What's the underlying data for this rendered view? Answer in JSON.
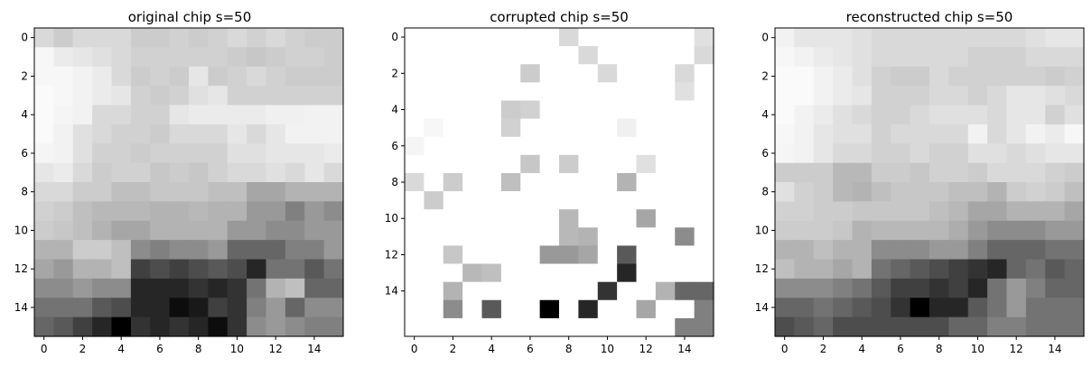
{
  "chart_data": [
    {
      "type": "heatmap",
      "title": "original chip s=50",
      "colormap": "gray_r",
      "xticks": [
        0,
        2,
        4,
        6,
        8,
        10,
        12,
        14
      ],
      "yticks": [
        0,
        2,
        4,
        6,
        8,
        10,
        12,
        14
      ],
      "values": [
        [
          0.15,
          0.2,
          0.15,
          0.15,
          0.15,
          0.2,
          0.2,
          0.18,
          0.2,
          0.18,
          0.15,
          0.18,
          0.15,
          0.18,
          0.2,
          0.2
        ],
        [
          0.03,
          0.08,
          0.1,
          0.12,
          0.15,
          0.18,
          0.18,
          0.18,
          0.18,
          0.18,
          0.2,
          0.22,
          0.2,
          0.18,
          0.18,
          0.2
        ],
        [
          0.03,
          0.03,
          0.05,
          0.08,
          0.15,
          0.2,
          0.18,
          0.2,
          0.1,
          0.2,
          0.18,
          0.15,
          0.18,
          0.2,
          0.2,
          0.2
        ],
        [
          0.02,
          0.03,
          0.05,
          0.08,
          0.1,
          0.18,
          0.2,
          0.18,
          0.12,
          0.1,
          0.18,
          0.18,
          0.18,
          0.18,
          0.18,
          0.18
        ],
        [
          0.02,
          0.04,
          0.05,
          0.15,
          0.15,
          0.18,
          0.18,
          0.1,
          0.08,
          0.08,
          0.08,
          0.08,
          0.06,
          0.06,
          0.05,
          0.05
        ],
        [
          0.02,
          0.05,
          0.12,
          0.15,
          0.18,
          0.18,
          0.2,
          0.15,
          0.15,
          0.15,
          0.1,
          0.15,
          0.1,
          0.05,
          0.05,
          0.05
        ],
        [
          0.04,
          0.05,
          0.12,
          0.18,
          0.18,
          0.2,
          0.18,
          0.18,
          0.18,
          0.18,
          0.12,
          0.12,
          0.1,
          0.1,
          0.1,
          0.08
        ],
        [
          0.1,
          0.08,
          0.15,
          0.2,
          0.18,
          0.18,
          0.22,
          0.2,
          0.22,
          0.18,
          0.15,
          0.15,
          0.12,
          0.15,
          0.1,
          0.15
        ],
        [
          0.15,
          0.15,
          0.2,
          0.2,
          0.25,
          0.25,
          0.22,
          0.22,
          0.22,
          0.25,
          0.25,
          0.35,
          0.35,
          0.3,
          0.3,
          0.3
        ],
        [
          0.18,
          0.2,
          0.25,
          0.28,
          0.28,
          0.28,
          0.3,
          0.3,
          0.28,
          0.3,
          0.3,
          0.4,
          0.4,
          0.5,
          0.4,
          0.45
        ],
        [
          0.2,
          0.22,
          0.25,
          0.3,
          0.35,
          0.35,
          0.3,
          0.3,
          0.3,
          0.3,
          0.4,
          0.4,
          0.45,
          0.45,
          0.4,
          0.4
        ],
        [
          0.3,
          0.3,
          0.2,
          0.2,
          0.25,
          0.45,
          0.5,
          0.45,
          0.45,
          0.4,
          0.6,
          0.6,
          0.6,
          0.5,
          0.5,
          0.4
        ],
        [
          0.35,
          0.4,
          0.3,
          0.3,
          0.25,
          0.75,
          0.7,
          0.75,
          0.7,
          0.65,
          0.7,
          0.85,
          0.55,
          0.55,
          0.65,
          0.55
        ],
        [
          0.45,
          0.45,
          0.4,
          0.45,
          0.45,
          0.85,
          0.85,
          0.85,
          0.8,
          0.85,
          0.8,
          0.55,
          0.3,
          0.25,
          0.6,
          0.6
        ],
        [
          0.55,
          0.55,
          0.55,
          0.65,
          0.7,
          0.85,
          0.85,
          0.95,
          0.9,
          0.75,
          0.8,
          0.5,
          0.4,
          0.6,
          0.45,
          0.45
        ],
        [
          0.6,
          0.65,
          0.75,
          0.85,
          1.0,
          0.8,
          0.85,
          0.8,
          0.85,
          0.95,
          0.8,
          0.45,
          0.4,
          0.45,
          0.5,
          0.5
        ]
      ]
    },
    {
      "type": "heatmap",
      "title": "corrupted chip s=50",
      "colormap": "gray_r",
      "xticks": [
        0,
        2,
        4,
        6,
        8,
        10,
        12,
        14
      ],
      "yticks": [
        0,
        2,
        4,
        6,
        8,
        10,
        12,
        14
      ],
      "values": [
        [
          0,
          0,
          0,
          0,
          0,
          0,
          0,
          0,
          0.15,
          0,
          0,
          0,
          0,
          0,
          0,
          0.12
        ],
        [
          0,
          0,
          0,
          0,
          0,
          0,
          0,
          0,
          0,
          0.15,
          0,
          0,
          0,
          0,
          0,
          0.15
        ],
        [
          0,
          0,
          0,
          0,
          0,
          0,
          0.2,
          0,
          0,
          0,
          0.15,
          0,
          0,
          0,
          0.15,
          0
        ],
        [
          0,
          0,
          0,
          0,
          0,
          0,
          0,
          0,
          0,
          0,
          0,
          0,
          0,
          0,
          0.12,
          0
        ],
        [
          0,
          0,
          0,
          0,
          0,
          0.2,
          0.18,
          0,
          0,
          0,
          0,
          0,
          0,
          0,
          0,
          0
        ],
        [
          0,
          0.03,
          0,
          0,
          0,
          0.18,
          0,
          0,
          0,
          0,
          0,
          0.06,
          0,
          0,
          0,
          0
        ],
        [
          0.04,
          0,
          0,
          0,
          0,
          0,
          0,
          0,
          0,
          0,
          0,
          0,
          0,
          0,
          0,
          0
        ],
        [
          0,
          0,
          0,
          0,
          0,
          0,
          0.22,
          0,
          0.2,
          0,
          0,
          0,
          0.12,
          0,
          0,
          0
        ],
        [
          0.15,
          0,
          0.2,
          0,
          0,
          0.25,
          0,
          0,
          0,
          0,
          0,
          0.3,
          0,
          0,
          0,
          0
        ],
        [
          0,
          0.2,
          0,
          0,
          0,
          0,
          0,
          0,
          0,
          0,
          0,
          0,
          0,
          0,
          0,
          0
        ],
        [
          0,
          0,
          0,
          0,
          0,
          0,
          0,
          0,
          0.28,
          0,
          0,
          0,
          0.35,
          0,
          0,
          0
        ],
        [
          0,
          0,
          0,
          0,
          0,
          0,
          0,
          0,
          0.28,
          0.3,
          0,
          0,
          0,
          0,
          0.45,
          0
        ],
        [
          0,
          0,
          0.22,
          0,
          0,
          0,
          0,
          0.4,
          0.4,
          0.35,
          0,
          0.65,
          0,
          0,
          0,
          0
        ],
        [
          0,
          0,
          0,
          0.28,
          0.25,
          0,
          0,
          0,
          0,
          0,
          0,
          0.85,
          0,
          0,
          0,
          0
        ],
        [
          0,
          0,
          0.3,
          0,
          0,
          0,
          0,
          0,
          0,
          0,
          0.8,
          0,
          0,
          0.3,
          0.6,
          0.6
        ],
        [
          0,
          0,
          0.45,
          0,
          0.65,
          0,
          0,
          1.0,
          0,
          0.85,
          0,
          0,
          0.35,
          0,
          0,
          0.5
        ],
        [
          0,
          0,
          0,
          0,
          0,
          0,
          0,
          0,
          0,
          0,
          0,
          0,
          0,
          0,
          0.5,
          0.5
        ]
      ]
    },
    {
      "type": "heatmap",
      "title": "reconstructed chip s=50",
      "colormap": "gray_r",
      "xticks": [
        0,
        2,
        4,
        6,
        8,
        10,
        12,
        14
      ],
      "yticks": [
        0,
        2,
        4,
        6,
        8,
        10,
        12,
        14
      ],
      "values": [
        [
          0.05,
          0.1,
          0.1,
          0.1,
          0.12,
          0.15,
          0.15,
          0.15,
          0.15,
          0.15,
          0.15,
          0.15,
          0.15,
          0.12,
          0.1,
          0.1
        ],
        [
          0.03,
          0.05,
          0.08,
          0.1,
          0.12,
          0.15,
          0.15,
          0.15,
          0.15,
          0.15,
          0.18,
          0.18,
          0.18,
          0.15,
          0.15,
          0.15
        ],
        [
          0.02,
          0.02,
          0.05,
          0.08,
          0.12,
          0.18,
          0.2,
          0.2,
          0.15,
          0.18,
          0.18,
          0.18,
          0.18,
          0.18,
          0.2,
          0.18
        ],
        [
          0.02,
          0.02,
          0.05,
          0.08,
          0.1,
          0.18,
          0.18,
          0.18,
          0.15,
          0.15,
          0.18,
          0.15,
          0.1,
          0.1,
          0.12,
          0.15
        ],
        [
          0.02,
          0.05,
          0.08,
          0.12,
          0.15,
          0.18,
          0.18,
          0.15,
          0.12,
          0.12,
          0.12,
          0.15,
          0.1,
          0.1,
          0.18,
          0.12
        ],
        [
          0.03,
          0.05,
          0.1,
          0.12,
          0.12,
          0.18,
          0.15,
          0.15,
          0.15,
          0.15,
          0.05,
          0.15,
          0.1,
          0.05,
          0.08,
          0.03
        ],
        [
          0.04,
          0.05,
          0.1,
          0.15,
          0.15,
          0.18,
          0.18,
          0.15,
          0.18,
          0.18,
          0.12,
          0.12,
          0.15,
          0.12,
          0.1,
          0.1
        ],
        [
          0.2,
          0.2,
          0.2,
          0.28,
          0.28,
          0.2,
          0.2,
          0.22,
          0.18,
          0.18,
          0.2,
          0.15,
          0.15,
          0.15,
          0.18,
          0.2
        ],
        [
          0.12,
          0.18,
          0.2,
          0.28,
          0.3,
          0.25,
          0.22,
          0.22,
          0.22,
          0.25,
          0.25,
          0.3,
          0.2,
          0.18,
          0.2,
          0.25
        ],
        [
          0.18,
          0.18,
          0.2,
          0.2,
          0.22,
          0.22,
          0.22,
          0.22,
          0.25,
          0.28,
          0.35,
          0.35,
          0.3,
          0.3,
          0.3,
          0.35
        ],
        [
          0.2,
          0.2,
          0.2,
          0.22,
          0.3,
          0.28,
          0.28,
          0.28,
          0.28,
          0.32,
          0.4,
          0.45,
          0.45,
          0.45,
          0.4,
          0.4
        ],
        [
          0.3,
          0.3,
          0.25,
          0.3,
          0.3,
          0.45,
          0.45,
          0.45,
          0.4,
          0.4,
          0.5,
          0.6,
          0.6,
          0.6,
          0.55,
          0.55
        ],
        [
          0.25,
          0.3,
          0.3,
          0.35,
          0.3,
          0.55,
          0.6,
          0.65,
          0.7,
          0.75,
          0.8,
          0.85,
          0.6,
          0.55,
          0.65,
          0.6
        ],
        [
          0.45,
          0.45,
          0.45,
          0.5,
          0.55,
          0.65,
          0.75,
          0.75,
          0.8,
          0.75,
          0.85,
          0.55,
          0.4,
          0.5,
          0.6,
          0.6
        ],
        [
          0.6,
          0.6,
          0.55,
          0.6,
          0.65,
          0.7,
          0.8,
          1.0,
          0.85,
          0.85,
          0.65,
          0.55,
          0.4,
          0.55,
          0.55,
          0.55
        ],
        [
          0.7,
          0.65,
          0.6,
          0.7,
          0.7,
          0.7,
          0.7,
          0.7,
          0.7,
          0.6,
          0.6,
          0.5,
          0.5,
          0.55,
          0.55,
          0.55
        ]
      ]
    }
  ]
}
